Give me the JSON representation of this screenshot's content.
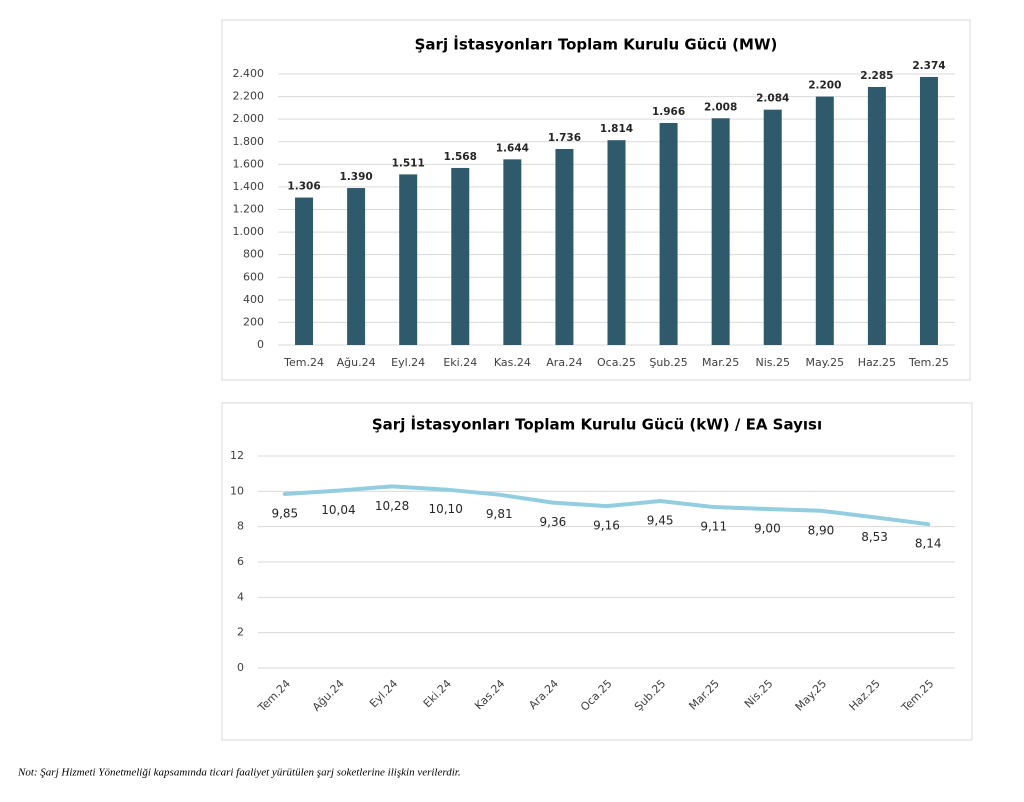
{
  "chart_data": [
    {
      "type": "bar",
      "title": "Şarj İstasyonları Toplam Kurulu Gücü (MW)",
      "categories": [
        "Tem.24",
        "Ağu.24",
        "Eyl.24",
        "Eki.24",
        "Kas.24",
        "Ara.24",
        "Oca.25",
        "Şub.25",
        "Mar.25",
        "Nis.25",
        "May.25",
        "Haz.25",
        "Tem.25"
      ],
      "values": [
        1306,
        1390,
        1511,
        1568,
        1644,
        1736,
        1814,
        1966,
        2008,
        2084,
        2200,
        2285,
        2374
      ],
      "value_labels": [
        "1.306",
        "1.390",
        "1.511",
        "1.568",
        "1.644",
        "1.736",
        "1.814",
        "1.966",
        "2.008",
        "2.084",
        "2.200",
        "2.285",
        "2.374"
      ],
      "color": "#2f5a6b",
      "ylim": [
        0,
        2400
      ],
      "yticks": [
        0,
        200,
        400,
        600,
        800,
        {
          "value": 1000,
          "label": "1.000"
        },
        {
          "value": 1200,
          "label": "1.200"
        },
        {
          "value": 1400,
          "label": "1.400"
        },
        {
          "value": 1600,
          "label": "1.600"
        },
        {
          "value": 1800,
          "label": "1.800"
        },
        {
          "value": 2000,
          "label": "2.000"
        },
        {
          "value": 2200,
          "label": "2.200"
        },
        {
          "value": 2400,
          "label": "2.400"
        }
      ],
      "grid": true
    },
    {
      "type": "line",
      "title": "Şarj İstasyonları Toplam Kurulu Gücü (kW) / EA Sayısı",
      "categories": [
        "Tem.24",
        "Ağu.24",
        "Eyl.24",
        "Eki.24",
        "Kas.24",
        "Ara.24",
        "Oca.25",
        "Şub.25",
        "Mar.25",
        "Nis.25",
        "May.25",
        "Haz.25",
        "Tem.25"
      ],
      "values": [
        9.85,
        10.04,
        10.28,
        10.1,
        9.81,
        9.36,
        9.16,
        9.45,
        9.11,
        9.0,
        8.9,
        8.53,
        8.14
      ],
      "value_labels": [
        "9,85",
        "10,04",
        "10,28",
        "10,10",
        "9,81",
        "9,36",
        "9,16",
        "9,45",
        "9,11",
        "9,00",
        "8,90",
        "8,53",
        "8,14"
      ],
      "color": "#93cde0",
      "ylim": [
        0,
        12
      ],
      "yticks": [
        0,
        2,
        4,
        6,
        8,
        10,
        12
      ],
      "grid": true
    }
  ],
  "note": "Not: Şarj Hizmeti Yönetmeliği kapsamında ticari faaliyet yürütülen şarj soketlerine ilişkin verilerdir."
}
